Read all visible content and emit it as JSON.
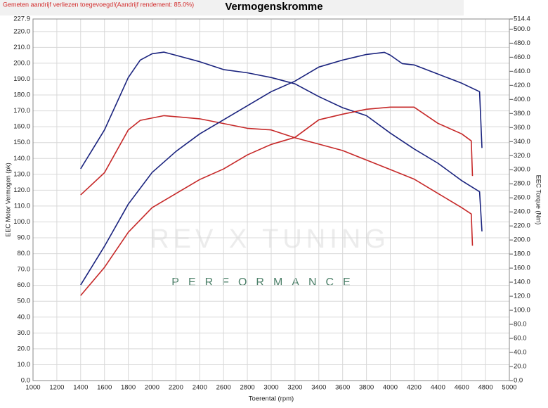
{
  "chart_data": {
    "type": "line",
    "title": "Vermogenskromme",
    "subtitle": "Gemeten aandrijf verliezen toegevoegd!(Aandrijf rendement: 85.0%)",
    "x_label": "Toerental (rpm)",
    "y_label": "EEC Motor Vermogen (pk)",
    "y2_label": "EEC Torque (Nm)",
    "watermark": {
      "brand": "REV X TUNING",
      "tagline": "PERFORMANCE"
    },
    "grid": true,
    "xlim": [
      1000,
      5000
    ],
    "xticks": [
      1000,
      1200,
      1400,
      1600,
      1800,
      2000,
      2200,
      2400,
      2600,
      2800,
      3000,
      3200,
      3400,
      3600,
      3800,
      4000,
      4200,
      4400,
      4600,
      4800,
      5000
    ],
    "ylim": [
      0,
      227.9
    ],
    "yticks": [
      {
        "value": 0,
        "label": "0.0"
      },
      {
        "value": 10,
        "label": "10.0"
      },
      {
        "value": 20,
        "label": "20.0"
      },
      {
        "value": 30,
        "label": "30.0"
      },
      {
        "value": 40,
        "label": "40.0"
      },
      {
        "value": 50,
        "label": "50.0"
      },
      {
        "value": 60,
        "label": "60.0"
      },
      {
        "value": 70,
        "label": "70.0"
      },
      {
        "value": 80,
        "label": "80.0"
      },
      {
        "value": 90,
        "label": "90.0"
      },
      {
        "value": 100,
        "label": "100.0"
      },
      {
        "value": 110,
        "label": "110.0"
      },
      {
        "value": 120,
        "label": "120.0"
      },
      {
        "value": 130,
        "label": "130.0"
      },
      {
        "value": 140,
        "label": "140.0"
      },
      {
        "value": 150,
        "label": "150.0"
      },
      {
        "value": 160,
        "label": "160.0"
      },
      {
        "value": 170,
        "label": "170.0"
      },
      {
        "value": 180,
        "label": "180.0"
      },
      {
        "value": 190,
        "label": "190.0"
      },
      {
        "value": 200,
        "label": "200.0"
      },
      {
        "value": 210,
        "label": "210.0"
      },
      {
        "value": 220,
        "label": "220.0"
      },
      {
        "value": 227.9,
        "label": "227.9"
      }
    ],
    "y2lim": [
      0,
      514.4
    ],
    "y2ticks": [
      {
        "value": 0,
        "label": "0.0"
      },
      {
        "value": 20,
        "label": "20.0"
      },
      {
        "value": 40,
        "label": "40.0"
      },
      {
        "value": 60,
        "label": "60.0"
      },
      {
        "value": 80,
        "label": "80.0"
      },
      {
        "value": 100,
        "label": "100.0"
      },
      {
        "value": 120,
        "label": "120.0"
      },
      {
        "value": 140,
        "label": "140.0"
      },
      {
        "value": 160,
        "label": "160.0"
      },
      {
        "value": 180,
        "label": "180.0"
      },
      {
        "value": 200,
        "label": "200.0"
      },
      {
        "value": 220,
        "label": "220.0"
      },
      {
        "value": 240,
        "label": "240.0"
      },
      {
        "value": 260,
        "label": "260.0"
      },
      {
        "value": 280,
        "label": "280.0"
      },
      {
        "value": 300,
        "label": "300.0"
      },
      {
        "value": 320,
        "label": "320.0"
      },
      {
        "value": 340,
        "label": "340.0"
      },
      {
        "value": 360,
        "label": "360.0"
      },
      {
        "value": 380,
        "label": "380.0"
      },
      {
        "value": 400,
        "label": "400.0"
      },
      {
        "value": 420,
        "label": "420.0"
      },
      {
        "value": 440,
        "label": "440.0"
      },
      {
        "value": 460,
        "label": "460.0"
      },
      {
        "value": 480,
        "label": "480.0"
      },
      {
        "value": 500,
        "label": "500.0"
      },
      {
        "value": 514.4,
        "label": "514.4"
      }
    ],
    "series": [
      {
        "color": "#1a237e",
        "axis": "y",
        "x": [
          1400,
          1600,
          1800,
          1900,
          2000,
          2100,
          2400,
          2600,
          2800,
          3000,
          3200,
          3400,
          3600,
          3800,
          4000,
          4200,
          4400,
          4600,
          4750,
          4770
        ],
        "values": [
          133.5,
          158,
          191,
          202,
          206,
          207,
          201,
          196,
          194,
          191,
          187,
          179,
          172,
          167,
          156,
          146,
          137,
          126,
          119,
          94
        ]
      },
      {
        "color": "#c62828",
        "axis": "y",
        "x": [
          1400,
          1600,
          1800,
          1900,
          2100,
          2400,
          2600,
          2800,
          3000,
          3200,
          3400,
          3600,
          3800,
          4000,
          4200,
          4400,
          4600,
          4680,
          4690
        ],
        "values": [
          117,
          131,
          158,
          164,
          167,
          165,
          162,
          159,
          158,
          153,
          149,
          145,
          139,
          133,
          127,
          118,
          109,
          105,
          85
        ]
      },
      {
        "color": "#1a237e",
        "axis": "y2",
        "x": [
          1400,
          1600,
          1800,
          2000,
          2200,
          2400,
          2600,
          2800,
          3000,
          3200,
          3400,
          3600,
          3800,
          3950,
          4000,
          4100,
          4200,
          4400,
          4600,
          4750,
          4770
        ],
        "values": [
          136,
          191,
          251,
          296,
          326,
          351,
          371,
          391,
          411,
          426,
          446,
          456,
          464,
          467,
          463,
          451,
          449,
          436,
          423,
          411,
          331
        ]
      },
      {
        "color": "#c62828",
        "axis": "y2",
        "x": [
          1400,
          1600,
          1800,
          2000,
          2200,
          2400,
          2600,
          2800,
          3000,
          3200,
          3400,
          3600,
          3800,
          4000,
          4200,
          4400,
          4600,
          4680,
          4690
        ],
        "values": [
          121,
          161,
          211,
          246,
          266,
          286,
          301,
          321,
          336,
          346,
          371,
          379,
          386,
          389,
          389,
          366,
          351,
          341,
          291
        ]
      }
    ]
  }
}
